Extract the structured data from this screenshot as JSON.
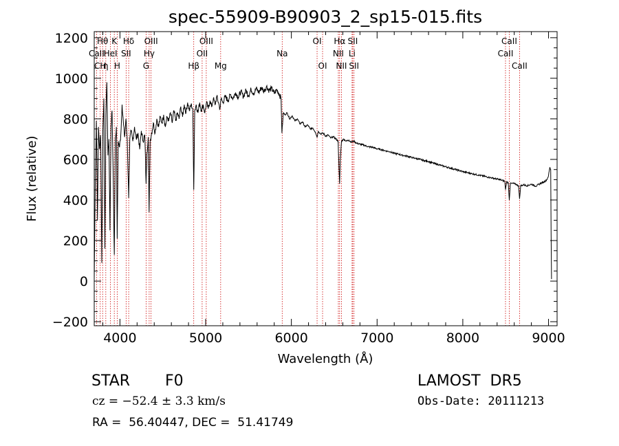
{
  "chart_data": {
    "type": "line",
    "title": "spec-55909-B90903_2_sp15-015.fits",
    "xlabel": "Wavelength (Å)",
    "ylabel": "Flux (relative)",
    "xlim": [
      3700,
      9100
    ],
    "ylim": [
      -220,
      1230
    ],
    "x_ticks": [
      4000,
      5000,
      6000,
      7000,
      8000,
      9000
    ],
    "y_ticks": [
      -200,
      0,
      200,
      400,
      600,
      800,
      1000,
      1200
    ],
    "grid": false,
    "line_color": "#000000",
    "marker_color": "#cc0000",
    "spectrum": [
      [
        3700,
        10
      ],
      [
        3712,
        480
      ],
      [
        3725,
        790
      ],
      [
        3738,
        300
      ],
      [
        3750,
        760
      ],
      [
        3762,
        650
      ],
      [
        3775,
        720
      ],
      [
        3788,
        90
      ],
      [
        3800,
        740
      ],
      [
        3812,
        900
      ],
      [
        3824,
        160
      ],
      [
        3836,
        820
      ],
      [
        3848,
        980
      ],
      [
        3860,
        620
      ],
      [
        3872,
        700
      ],
      [
        3884,
        250
      ],
      [
        3896,
        760
      ],
      [
        3908,
        840
      ],
      [
        3920,
        560
      ],
      [
        3934,
        130
      ],
      [
        3946,
        700
      ],
      [
        3958,
        760
      ],
      [
        3968,
        210
      ],
      [
        3980,
        690
      ],
      [
        3995,
        660
      ],
      [
        4010,
        720
      ],
      [
        4025,
        870
      ],
      [
        4040,
        780
      ],
      [
        4055,
        710
      ],
      [
        4070,
        800
      ],
      [
        4085,
        700
      ],
      [
        4102,
        410
      ],
      [
        4115,
        700
      ],
      [
        4130,
        740
      ],
      [
        4150,
        690
      ],
      [
        4170,
        760
      ],
      [
        4190,
        700
      ],
      [
        4210,
        730
      ],
      [
        4230,
        650
      ],
      [
        4250,
        740
      ],
      [
        4270,
        690
      ],
      [
        4290,
        720
      ],
      [
        4305,
        480
      ],
      [
        4315,
        630
      ],
      [
        4330,
        710
      ],
      [
        4340,
        340
      ],
      [
        4352,
        690
      ],
      [
        4370,
        730
      ],
      [
        4390,
        780
      ],
      [
        4410,
        730
      ],
      [
        4430,
        800
      ],
      [
        4450,
        760
      ],
      [
        4470,
        810
      ],
      [
        4490,
        780
      ],
      [
        4510,
        820
      ],
      [
        4530,
        760
      ],
      [
        4550,
        810
      ],
      [
        4570,
        790
      ],
      [
        4590,
        830
      ],
      [
        4610,
        780
      ],
      [
        4630,
        840
      ],
      [
        4650,
        790
      ],
      [
        4670,
        830
      ],
      [
        4690,
        800
      ],
      [
        4710,
        860
      ],
      [
        4730,
        810
      ],
      [
        4750,
        870
      ],
      [
        4770,
        830
      ],
      [
        4790,
        880
      ],
      [
        4810,
        840
      ],
      [
        4830,
        870
      ],
      [
        4850,
        850
      ],
      [
        4861,
        450
      ],
      [
        4872,
        840
      ],
      [
        4890,
        870
      ],
      [
        4910,
        830
      ],
      [
        4930,
        880
      ],
      [
        4950,
        840
      ],
      [
        4970,
        870
      ],
      [
        4990,
        830
      ],
      [
        5010,
        880
      ],
      [
        5030,
        850
      ],
      [
        5050,
        890
      ],
      [
        5070,
        860
      ],
      [
        5090,
        900
      ],
      [
        5110,
        870
      ],
      [
        5130,
        910
      ],
      [
        5150,
        880
      ],
      [
        5167,
        850
      ],
      [
        5180,
        900
      ],
      [
        5200,
        880
      ],
      [
        5230,
        910
      ],
      [
        5260,
        890
      ],
      [
        5290,
        920
      ],
      [
        5320,
        900
      ],
      [
        5350,
        930
      ],
      [
        5380,
        905
      ],
      [
        5410,
        935
      ],
      [
        5440,
        910
      ],
      [
        5470,
        940
      ],
      [
        5500,
        915
      ],
      [
        5530,
        945
      ],
      [
        5560,
        925
      ],
      [
        5590,
        950
      ],
      [
        5620,
        930
      ],
      [
        5650,
        955
      ],
      [
        5680,
        935
      ],
      [
        5710,
        960
      ],
      [
        5740,
        940
      ],
      [
        5770,
        950
      ],
      [
        5800,
        925
      ],
      [
        5830,
        945
      ],
      [
        5860,
        920
      ],
      [
        5880,
        900
      ],
      [
        5890,
        730
      ],
      [
        5897,
        770
      ],
      [
        5905,
        830
      ],
      [
        5925,
        820
      ],
      [
        5950,
        830
      ],
      [
        5980,
        800
      ],
      [
        6010,
        815
      ],
      [
        6040,
        790
      ],
      [
        6070,
        800
      ],
      [
        6100,
        775
      ],
      [
        6130,
        785
      ],
      [
        6160,
        760
      ],
      [
        6190,
        770
      ],
      [
        6220,
        750
      ],
      [
        6250,
        755
      ],
      [
        6280,
        735
      ],
      [
        6300,
        710
      ],
      [
        6315,
        740
      ],
      [
        6340,
        725
      ],
      [
        6370,
        730
      ],
      [
        6400,
        715
      ],
      [
        6430,
        720
      ],
      [
        6460,
        705
      ],
      [
        6490,
        712
      ],
      [
        6520,
        700
      ],
      [
        6545,
        690
      ],
      [
        6555,
        560
      ],
      [
        6563,
        480
      ],
      [
        6570,
        600
      ],
      [
        6585,
        690
      ],
      [
        6610,
        700
      ],
      [
        6640,
        690
      ],
      [
        6670,
        695
      ],
      [
        6700,
        685
      ],
      [
        6730,
        690
      ],
      [
        6760,
        680
      ],
      [
        6800,
        675
      ],
      [
        6850,
        670
      ],
      [
        6900,
        662
      ],
      [
        6950,
        660
      ],
      [
        7000,
        652
      ],
      [
        7050,
        648
      ],
      [
        7100,
        642
      ],
      [
        7150,
        638
      ],
      [
        7200,
        630
      ],
      [
        7250,
        626
      ],
      [
        7300,
        620
      ],
      [
        7350,
        616
      ],
      [
        7400,
        610
      ],
      [
        7450,
        605
      ],
      [
        7500,
        600
      ],
      [
        7550,
        594
      ],
      [
        7600,
        590
      ],
      [
        7650,
        582
      ],
      [
        7700,
        576
      ],
      [
        7750,
        570
      ],
      [
        7800,
        564
      ],
      [
        7850,
        558
      ],
      [
        7900,
        552
      ],
      [
        7950,
        546
      ],
      [
        8000,
        540
      ],
      [
        8050,
        535
      ],
      [
        8100,
        530
      ],
      [
        8150,
        526
      ],
      [
        8200,
        521
      ],
      [
        8250,
        517
      ],
      [
        8300,
        512
      ],
      [
        8350,
        508
      ],
      [
        8400,
        503
      ],
      [
        8450,
        498
      ],
      [
        8490,
        492
      ],
      [
        8498,
        450
      ],
      [
        8510,
        490
      ],
      [
        8530,
        485
      ],
      [
        8542,
        400
      ],
      [
        8555,
        480
      ],
      [
        8580,
        482
      ],
      [
        8620,
        478
      ],
      [
        8650,
        470
      ],
      [
        8662,
        405
      ],
      [
        8675,
        470
      ],
      [
        8710,
        475
      ],
      [
        8750,
        470
      ],
      [
        8800,
        478
      ],
      [
        8850,
        468
      ],
      [
        8900,
        480
      ],
      [
        8950,
        490
      ],
      [
        8980,
        500
      ],
      [
        9000,
        520
      ],
      [
        9015,
        560
      ],
      [
        9025,
        550
      ],
      [
        9030,
        230
      ],
      [
        9035,
        10
      ]
    ],
    "lines": [
      {
        "label": "Hθ",
        "x": 3798,
        "row": 0
      },
      {
        "label": "K",
        "x": 3934,
        "row": 0
      },
      {
        "label": "Hδ",
        "x": 4102,
        "row": 0
      },
      {
        "label": "OIII",
        "x": 4363,
        "row": 0
      },
      {
        "label": "OIII",
        "x": 5007,
        "row": 0
      },
      {
        "label": "OI",
        "x": 6300,
        "row": 0
      },
      {
        "label": "Hα",
        "x": 6563,
        "row": 0
      },
      {
        "label": "SII",
        "x": 6716,
        "row": 0
      },
      {
        "label": "CaII",
        "x": 8542,
        "row": 0
      },
      {
        "label": "CaII",
        "x": 3727,
        "row": 1
      },
      {
        "label": "HeI",
        "x": 3889,
        "row": 1
      },
      {
        "label": "SII",
        "x": 4072,
        "row": 1
      },
      {
        "label": "Hγ",
        "x": 4341,
        "row": 1
      },
      {
        "label": "OII",
        "x": 4959,
        "row": 1
      },
      {
        "label": "Na",
        "x": 5893,
        "row": 1
      },
      {
        "label": "NII",
        "x": 6548,
        "row": 1
      },
      {
        "label": "Li",
        "x": 6708,
        "row": 1
      },
      {
        "label": "CaII",
        "x": 8498,
        "row": 1
      },
      {
        "label": "CH",
        "x": 3770,
        "row": 2
      },
      {
        "label": "η",
        "x": 3835,
        "row": 2
      },
      {
        "label": "H",
        "x": 3968,
        "row": 2
      },
      {
        "label": "G",
        "x": 4305,
        "row": 2
      },
      {
        "label": "Hβ",
        "x": 4861,
        "row": 2
      },
      {
        "label": "Mg",
        "x": 5175,
        "row": 2
      },
      {
        "label": "OI",
        "x": 6364,
        "row": 2
      },
      {
        "label": "NII",
        "x": 6584,
        "row": 2
      },
      {
        "label": "SII",
        "x": 6731,
        "row": 2
      },
      {
        "label": "CaII",
        "x": 8662,
        "row": 2
      }
    ]
  },
  "info": {
    "object_class": "STAR",
    "subclass": "F0",
    "survey": "LAMOST  DR5",
    "cz": "cz = −52.4 ± 3.3 km/s",
    "obs_date": "Obs-Date: 20111213",
    "coords": "RA =  56.40447, DEC =  51.41749"
  }
}
